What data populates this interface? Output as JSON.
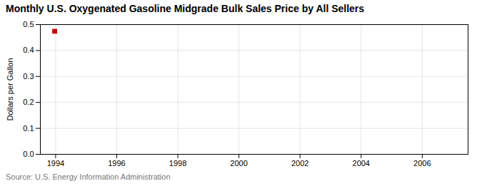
{
  "chart_data": {
    "type": "scatter",
    "title": "Monthly U.S. Oxygenated Gasoline Midgrade Bulk Sales Price by All Sellers",
    "ylabel": "Dollars per Gallon",
    "source": "Source: U.S. Energy Information Administration",
    "x": [
      1993.97
    ],
    "values": [
      0.474
    ],
    "color": "#cc0000",
    "marker": "square",
    "xlim": [
      1993.5,
      2007.5
    ],
    "ylim": [
      0.0,
      0.5
    ],
    "xticks": [
      1994,
      1996,
      1998,
      2000,
      2002,
      2004,
      2006
    ],
    "yticks": [
      {
        "value": 0.0,
        "label": "0.0"
      },
      0.1,
      0.2,
      0.3,
      0.4,
      0.5
    ],
    "grid": true
  }
}
